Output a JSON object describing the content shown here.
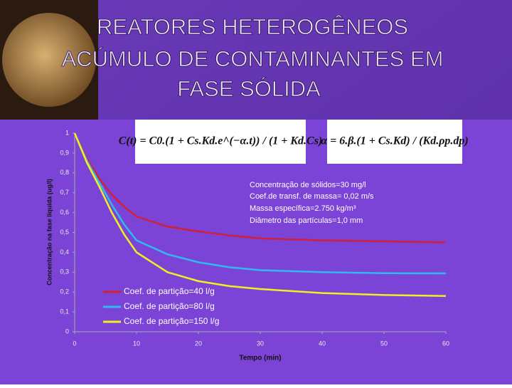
{
  "chart_data": {
    "type": "line",
    "title_lines": [
      "REATORES HETEROGÊNEOS",
      "ACÚMULO DE CONTAMINANTES EM",
      "FASE SÓLIDA"
    ],
    "formulas": [
      "C(t) = C0.(1 + Cs.Kd.e^(−α.t)) / (1 + Kd.Cs)",
      "α = 6.β.(1 + Cs.Kd) / (Kd.ρp.dp)"
    ],
    "annotations": [
      "Concentração de sólidos=30 mg/l",
      "Coef.de transf. de massa= 0,02 m/s",
      "Massa específica=2.750 kg/m³",
      "Diâmetro das partículas=1,0 mm"
    ],
    "x_label": "Tempo (min)",
    "y_label": "Concentração na fase líquida (ug/l)",
    "x": [
      0,
      2,
      4,
      6,
      8,
      10,
      15,
      20,
      25,
      30,
      40,
      50,
      60
    ],
    "series": [
      {
        "name": "Coef. de partição=40 l/g",
        "color": "#d0203a",
        "values": [
          1,
          0.87,
          0.77,
          0.69,
          0.63,
          0.58,
          0.53,
          0.505,
          0.485,
          0.47,
          0.46,
          0.455,
          0.45
        ]
      },
      {
        "name": "Coef. de partição=80 l/g",
        "color": "#30b8f0",
        "values": [
          1,
          0.86,
          0.75,
          0.64,
          0.54,
          0.46,
          0.39,
          0.35,
          0.325,
          0.31,
          0.3,
          0.295,
          0.294
        ]
      },
      {
        "name": "Coef. de partição=150 l/g",
        "color": "#f0f020",
        "values": [
          1,
          0.85,
          0.73,
          0.6,
          0.49,
          0.4,
          0.3,
          0.255,
          0.23,
          0.215,
          0.195,
          0.185,
          0.18
        ]
      }
    ],
    "xlim": [
      0,
      60
    ],
    "xticks": [
      0,
      10,
      20,
      30,
      40,
      50,
      60
    ],
    "ylim": [
      0,
      1
    ],
    "yticks": [
      0,
      {
        "value": 0.1,
        "label": "0,1"
      },
      {
        "value": 0.2,
        "label": "0,2"
      },
      {
        "value": 0.3,
        "label": "0,3"
      },
      {
        "value": 0.4,
        "label": "0,4"
      },
      {
        "value": 0.5,
        "label": "0,5"
      },
      {
        "value": 0.6,
        "label": "0,6"
      },
      {
        "value": 0.7,
        "label": "0,7"
      },
      {
        "value": 0.8,
        "label": "0,8"
      },
      {
        "value": 0.9,
        "label": "0,9"
      },
      1
    ],
    "legend": "lower left"
  }
}
